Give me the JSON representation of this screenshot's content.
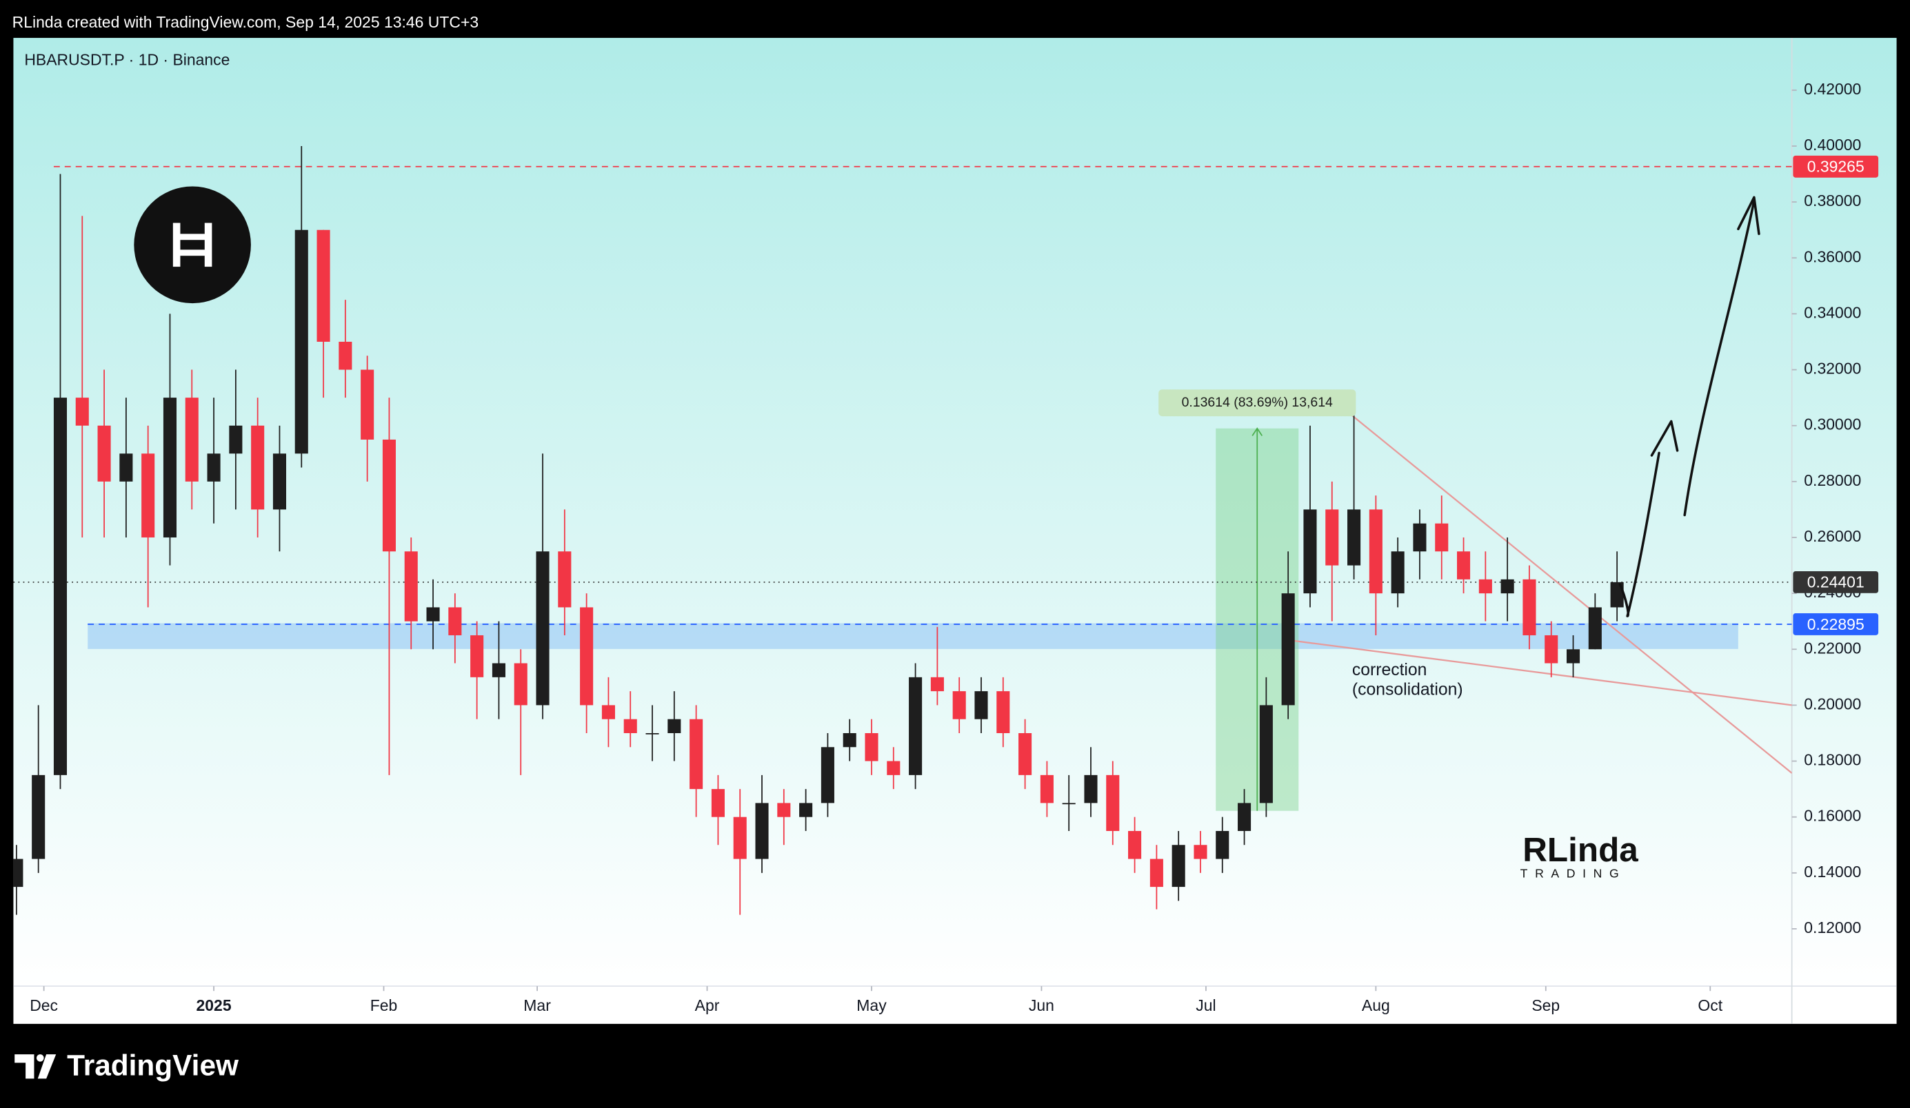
{
  "page": {
    "credit": "RLinda created with TradingView.com, Sep 14, 2025 13:46 UTC+3",
    "brand": "TradingView",
    "watermark": [
      "RLinda",
      "TRADING"
    ]
  },
  "chart_data": {
    "type": "candlestick",
    "title": "HBARUSDT.P · 1D · Binance",
    "up_color": "#1e1e1e",
    "down_color": "#f23645",
    "x": [
      -5,
      -1,
      3,
      7,
      11,
      15,
      19,
      23,
      27,
      31,
      35,
      39,
      43,
      47,
      51,
      55,
      59,
      63,
      67,
      71,
      75,
      79,
      83,
      87,
      91,
      95,
      99,
      103,
      107,
      111,
      115,
      119,
      123,
      127,
      131,
      135,
      139,
      143,
      147,
      151,
      155,
      159,
      163,
      167,
      171,
      175,
      179,
      183,
      187,
      191,
      195,
      199,
      203,
      207,
      211,
      215,
      219,
      223,
      227,
      231,
      235,
      239,
      243,
      247,
      251,
      255,
      259,
      263,
      267,
      271,
      275,
      279,
      283,
      287
    ],
    "open": [
      0.135,
      0.145,
      0.175,
      0.31,
      0.3,
      0.28,
      0.29,
      0.26,
      0.31,
      0.28,
      0.29,
      0.3,
      0.27,
      0.29,
      0.37,
      0.33,
      0.32,
      0.295,
      0.255,
      0.23,
      0.235,
      0.225,
      0.21,
      0.215,
      0.2,
      0.255,
      0.235,
      0.2,
      0.195,
      0.19,
      0.19,
      0.195,
      0.17,
      0.16,
      0.145,
      0.165,
      0.16,
      0.165,
      0.185,
      0.19,
      0.18,
      0.175,
      0.21,
      0.205,
      0.195,
      0.205,
      0.19,
      0.175,
      0.165,
      0.165,
      0.175,
      0.155,
      0.145,
      0.135,
      0.15,
      0.145,
      0.155,
      0.165,
      0.2,
      0.24,
      0.27,
      0.25,
      0.27,
      0.24,
      0.255,
      0.265,
      0.255,
      0.245,
      0.24,
      0.245,
      0.225,
      0.215,
      0.22,
      0.235
    ],
    "high": [
      0.15,
      0.2,
      0.39,
      0.375,
      0.32,
      0.31,
      0.3,
      0.34,
      0.32,
      0.31,
      0.32,
      0.31,
      0.3,
      0.4,
      0.37,
      0.345,
      0.325,
      0.31,
      0.26,
      0.245,
      0.24,
      0.23,
      0.23,
      0.22,
      0.29,
      0.27,
      0.24,
      0.21,
      0.205,
      0.2,
      0.205,
      0.2,
      0.175,
      0.17,
      0.175,
      0.17,
      0.17,
      0.19,
      0.195,
      0.195,
      0.185,
      0.215,
      0.228,
      0.21,
      0.21,
      0.21,
      0.195,
      0.18,
      0.175,
      0.185,
      0.18,
      0.16,
      0.15,
      0.155,
      0.155,
      0.16,
      0.17,
      0.21,
      0.255,
      0.3,
      0.28,
      0.305,
      0.275,
      0.26,
      0.27,
      0.275,
      0.26,
      0.255,
      0.26,
      0.25,
      0.23,
      0.225,
      0.24,
      0.255
    ],
    "low": [
      0.125,
      0.14,
      0.17,
      0.26,
      0.26,
      0.26,
      0.235,
      0.25,
      0.27,
      0.265,
      0.27,
      0.26,
      0.255,
      0.285,
      0.31,
      0.31,
      0.28,
      0.175,
      0.22,
      0.22,
      0.215,
      0.195,
      0.195,
      0.175,
      0.195,
      0.225,
      0.19,
      0.185,
      0.185,
      0.18,
      0.18,
      0.16,
      0.15,
      0.125,
      0.14,
      0.15,
      0.155,
      0.16,
      0.18,
      0.175,
      0.17,
      0.17,
      0.2,
      0.19,
      0.19,
      0.185,
      0.17,
      0.16,
      0.155,
      0.16,
      0.15,
      0.14,
      0.127,
      0.13,
      0.14,
      0.14,
      0.15,
      0.16,
      0.195,
      0.235,
      0.23,
      0.245,
      0.225,
      0.235,
      0.245,
      0.245,
      0.24,
      0.23,
      0.23,
      0.22,
      0.21,
      0.21,
      0.22,
      0.23
    ],
    "close": [
      0.145,
      0.175,
      0.31,
      0.3,
      0.28,
      0.29,
      0.26,
      0.31,
      0.28,
      0.29,
      0.3,
      0.27,
      0.29,
      0.37,
      0.33,
      0.32,
      0.295,
      0.255,
      0.23,
      0.235,
      0.225,
      0.21,
      0.215,
      0.2,
      0.255,
      0.235,
      0.2,
      0.195,
      0.19,
      0.19,
      0.195,
      0.17,
      0.16,
      0.145,
      0.165,
      0.16,
      0.165,
      0.185,
      0.19,
      0.18,
      0.175,
      0.21,
      0.205,
      0.195,
      0.205,
      0.19,
      0.175,
      0.165,
      0.165,
      0.175,
      0.155,
      0.145,
      0.135,
      0.15,
      0.145,
      0.155,
      0.165,
      0.2,
      0.24,
      0.27,
      0.25,
      0.27,
      0.24,
      0.255,
      0.265,
      0.255,
      0.245,
      0.24,
      0.245,
      0.225,
      0.215,
      0.22,
      0.235,
      0.24401
    ],
    "xlim": [
      -5.56,
      318.89
    ],
    "xticks": [
      {
        "value": 0,
        "label": "Dec"
      },
      {
        "value": 31,
        "label": "2025"
      },
      {
        "value": 62,
        "label": "Feb"
      },
      {
        "value": 90,
        "label": "Mar"
      },
      {
        "value": 121,
        "label": "Apr"
      },
      {
        "value": 151,
        "label": "May"
      },
      {
        "value": 182,
        "label": "Jun"
      },
      {
        "value": 212,
        "label": "Jul"
      },
      {
        "value": 243,
        "label": "Aug"
      },
      {
        "value": 274,
        "label": "Sep"
      },
      {
        "value": 304,
        "label": "Oct"
      }
    ],
    "ylim": [
      0.0995,
      0.4387
    ],
    "yticks": [
      {
        "value": 0.12,
        "label": "0.12000"
      },
      {
        "value": 0.14,
        "label": "0.14000"
      },
      {
        "value": 0.16,
        "label": "0.16000"
      },
      {
        "value": 0.18,
        "label": "0.18000"
      },
      {
        "value": 0.2,
        "label": "0.20000"
      },
      {
        "value": 0.22,
        "label": "0.22000"
      },
      {
        "value": 0.24,
        "label": "0.24000"
      },
      {
        "value": 0.26,
        "label": "0.26000"
      },
      {
        "value": 0.28,
        "label": "0.28000"
      },
      {
        "value": 0.3,
        "label": "0.30000"
      },
      {
        "value": 0.32,
        "label": "0.32000"
      },
      {
        "value": 0.34,
        "label": "0.34000"
      },
      {
        "value": 0.36,
        "label": "0.36000"
      },
      {
        "value": 0.38,
        "label": "0.38000"
      },
      {
        "value": 0.4,
        "label": "0.40000"
      },
      {
        "value": 0.42,
        "label": "0.42000"
      }
    ],
    "price_lines": [
      {
        "value": 0.39265,
        "color": "#f23645",
        "start": 1.8,
        "style": "dashed"
      },
      {
        "value": 0.24401,
        "color": "#333333",
        "start": -5.56,
        "style": "dotted"
      },
      {
        "value": 0.22895,
        "color": "#2962ff",
        "start": 8,
        "style": "dashed"
      }
    ],
    "zone": {
      "x": [
        8,
        309.1
      ],
      "y": [
        0.2201,
        0.2293
      ],
      "color": "#90c2f5"
    },
    "measure": {
      "x": [
        213.8,
        228.9
      ],
      "y": [
        0.1622,
        0.299
      ],
      "label": "0.13614 (83.69%) 13,614",
      "color": "#7fd38e"
    },
    "trendlines": [
      {
        "x": [
          237.8,
          318.9
        ],
        "y": [
          0.305,
          0.1757
        ],
        "color": "#e89a9a"
      },
      {
        "x": [
          225.8,
          318.9
        ],
        "y": [
          0.2236,
          0.2
        ],
        "color": "#e89a9a"
      }
    ],
    "annotation": [
      "correction",
      "(consolidation)"
    ]
  }
}
